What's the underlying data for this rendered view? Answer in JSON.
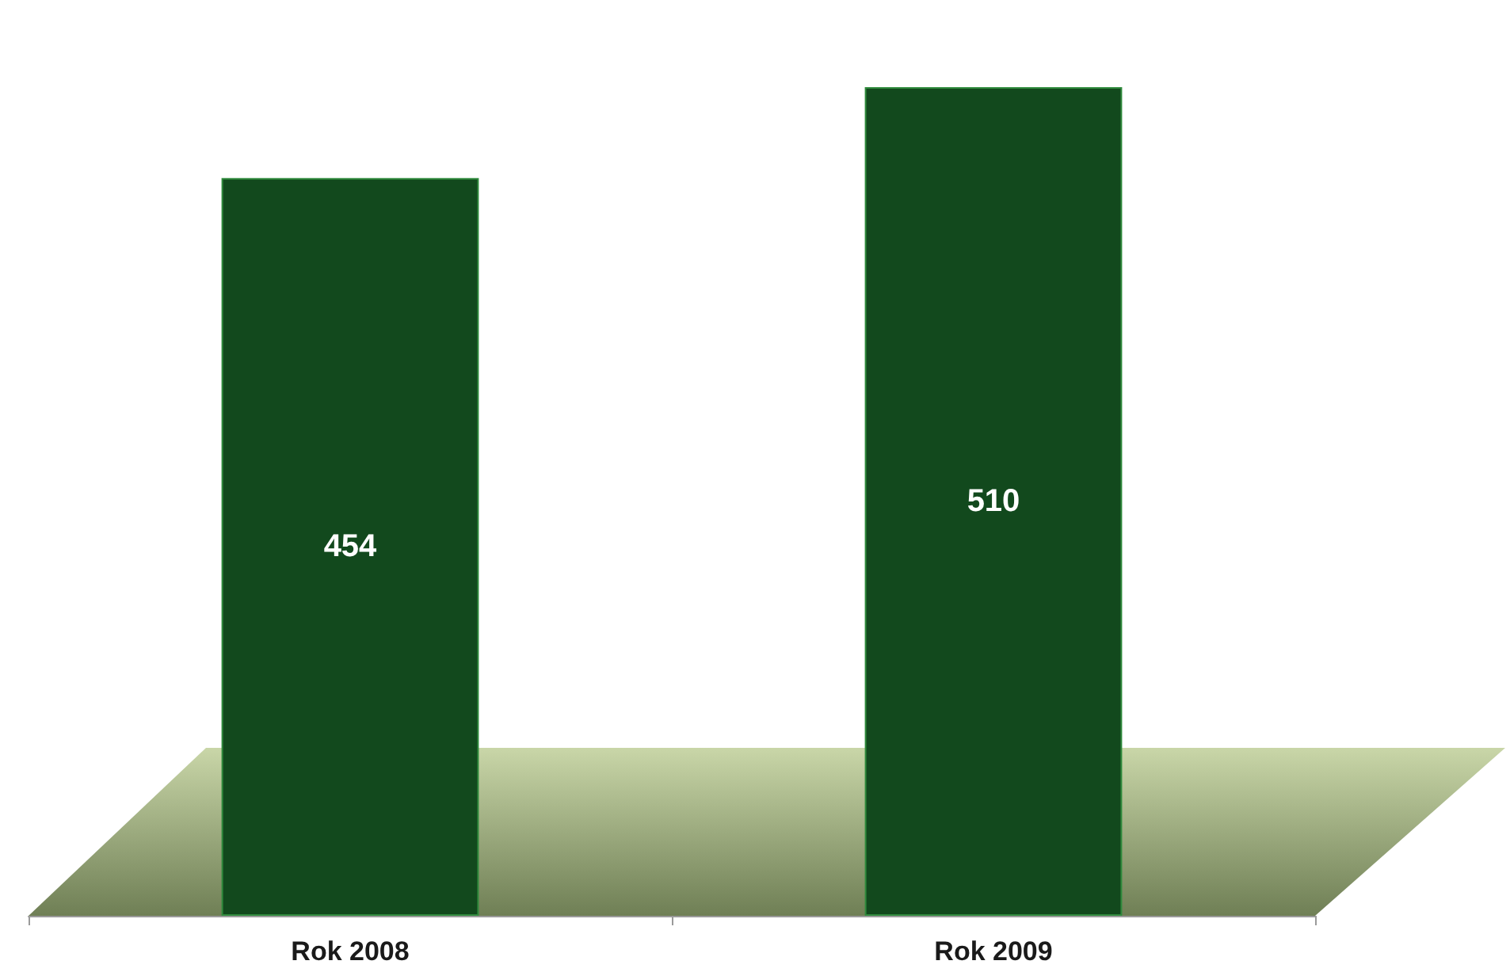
{
  "chart_data": {
    "type": "bar",
    "categories": [
      "Rok 2008",
      "Rok 2009"
    ],
    "values": [
      454,
      510
    ],
    "color": "#12491d",
    "data_labels": true,
    "grid": false,
    "tick_labels": "x"
  }
}
